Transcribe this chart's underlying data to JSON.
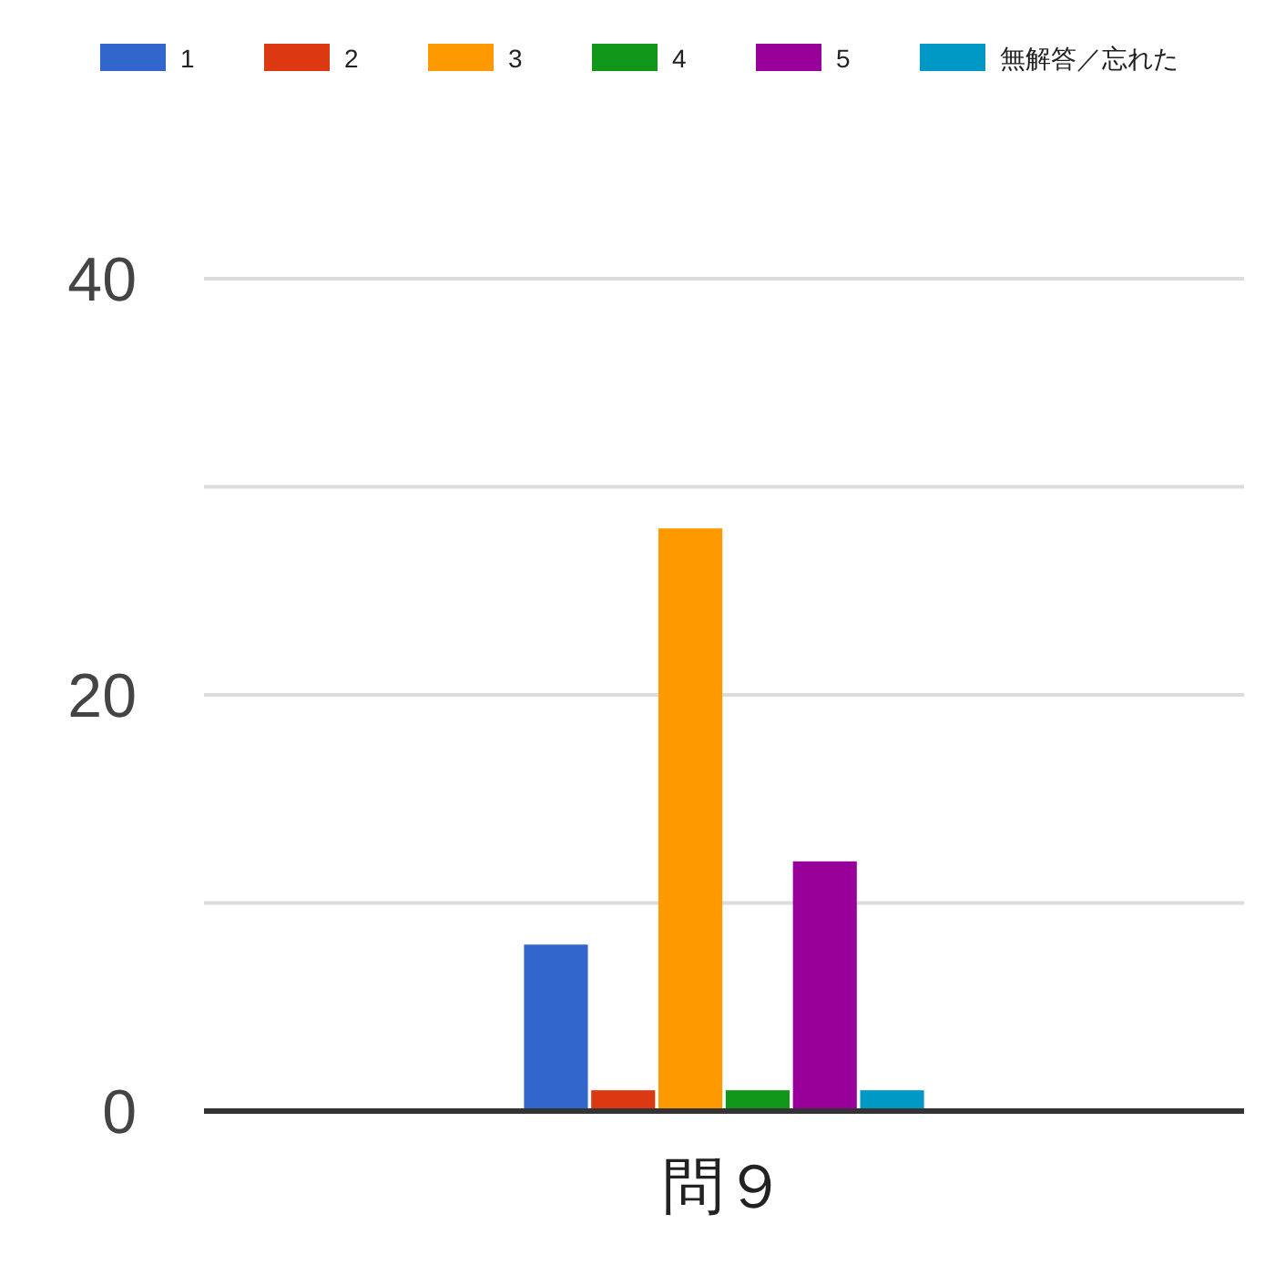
{
  "chart_data": {
    "type": "bar",
    "categories": [
      "問９"
    ],
    "series": [
      {
        "name": "1",
        "color": "#3366cc",
        "values": [
          8
        ]
      },
      {
        "name": "2",
        "color": "#dc3912",
        "values": [
          1
        ]
      },
      {
        "name": "3",
        "color": "#ff9900",
        "values": [
          28
        ]
      },
      {
        "name": "4",
        "color": "#109618",
        "values": [
          1
        ]
      },
      {
        "name": "5",
        "color": "#990099",
        "values": [
          12
        ]
      },
      {
        "name": "無解答／忘れた",
        "color": "#0099c6",
        "values": [
          1
        ]
      }
    ],
    "ylim": [
      0,
      40
    ],
    "yticks": [
      0,
      {
        "value": 10,
        "label": null
      },
      20,
      {
        "value": 30,
        "label": null
      },
      40
    ],
    "grid": "y",
    "legend": "top"
  }
}
